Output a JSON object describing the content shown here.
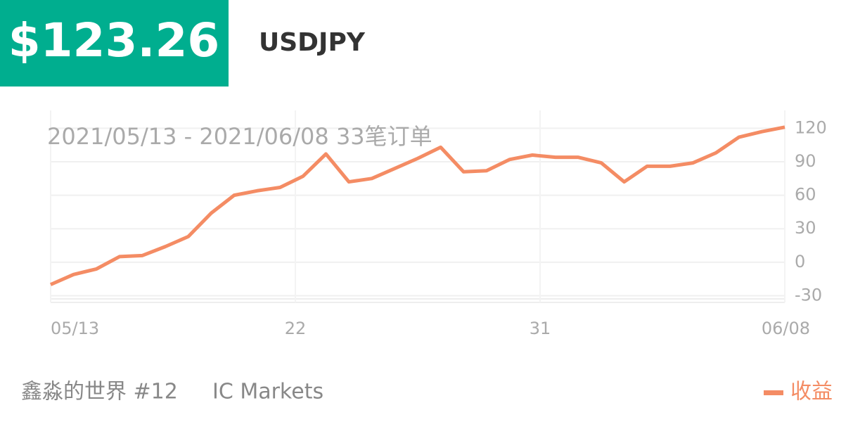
{
  "header": {
    "price": "$123.26",
    "symbol": "USDJPY"
  },
  "chart_data": {
    "type": "line",
    "subtitle": "2021/05/13 - 2021/06/08  33笔订单",
    "x": [
      0,
      1,
      2,
      3,
      4,
      5,
      6,
      7,
      8,
      9,
      10,
      11,
      12,
      13,
      14,
      15,
      16,
      17,
      18,
      19,
      20,
      21,
      22,
      23,
      24,
      25,
      26,
      27,
      28,
      29,
      30,
      31,
      32
    ],
    "xlim": [
      0,
      32
    ],
    "xticks": [
      {
        "value": 0,
        "label": "05/13"
      },
      {
        "value": 10.667,
        "label": "22"
      },
      {
        "value": 21.333,
        "label": "31"
      },
      {
        "value": 32,
        "label": "06/08"
      }
    ],
    "series": [
      {
        "name": "收益",
        "color": "#f48c64",
        "values": [
          -20,
          -11,
          -6,
          5,
          6,
          14,
          23,
          44,
          60,
          64,
          67,
          77,
          97,
          72,
          75,
          84,
          93,
          103,
          81,
          82,
          92,
          96,
          94,
          94,
          89,
          72,
          86,
          86,
          89,
          98,
          112,
          117,
          121
        ]
      }
    ],
    "ylim": [
      -36,
      136
    ],
    "yticks": [
      -30,
      0,
      30,
      60,
      90,
      120
    ],
    "grid": true
  },
  "footer": {
    "account": "鑫淼的世界 #12",
    "broker": "IC Markets"
  }
}
